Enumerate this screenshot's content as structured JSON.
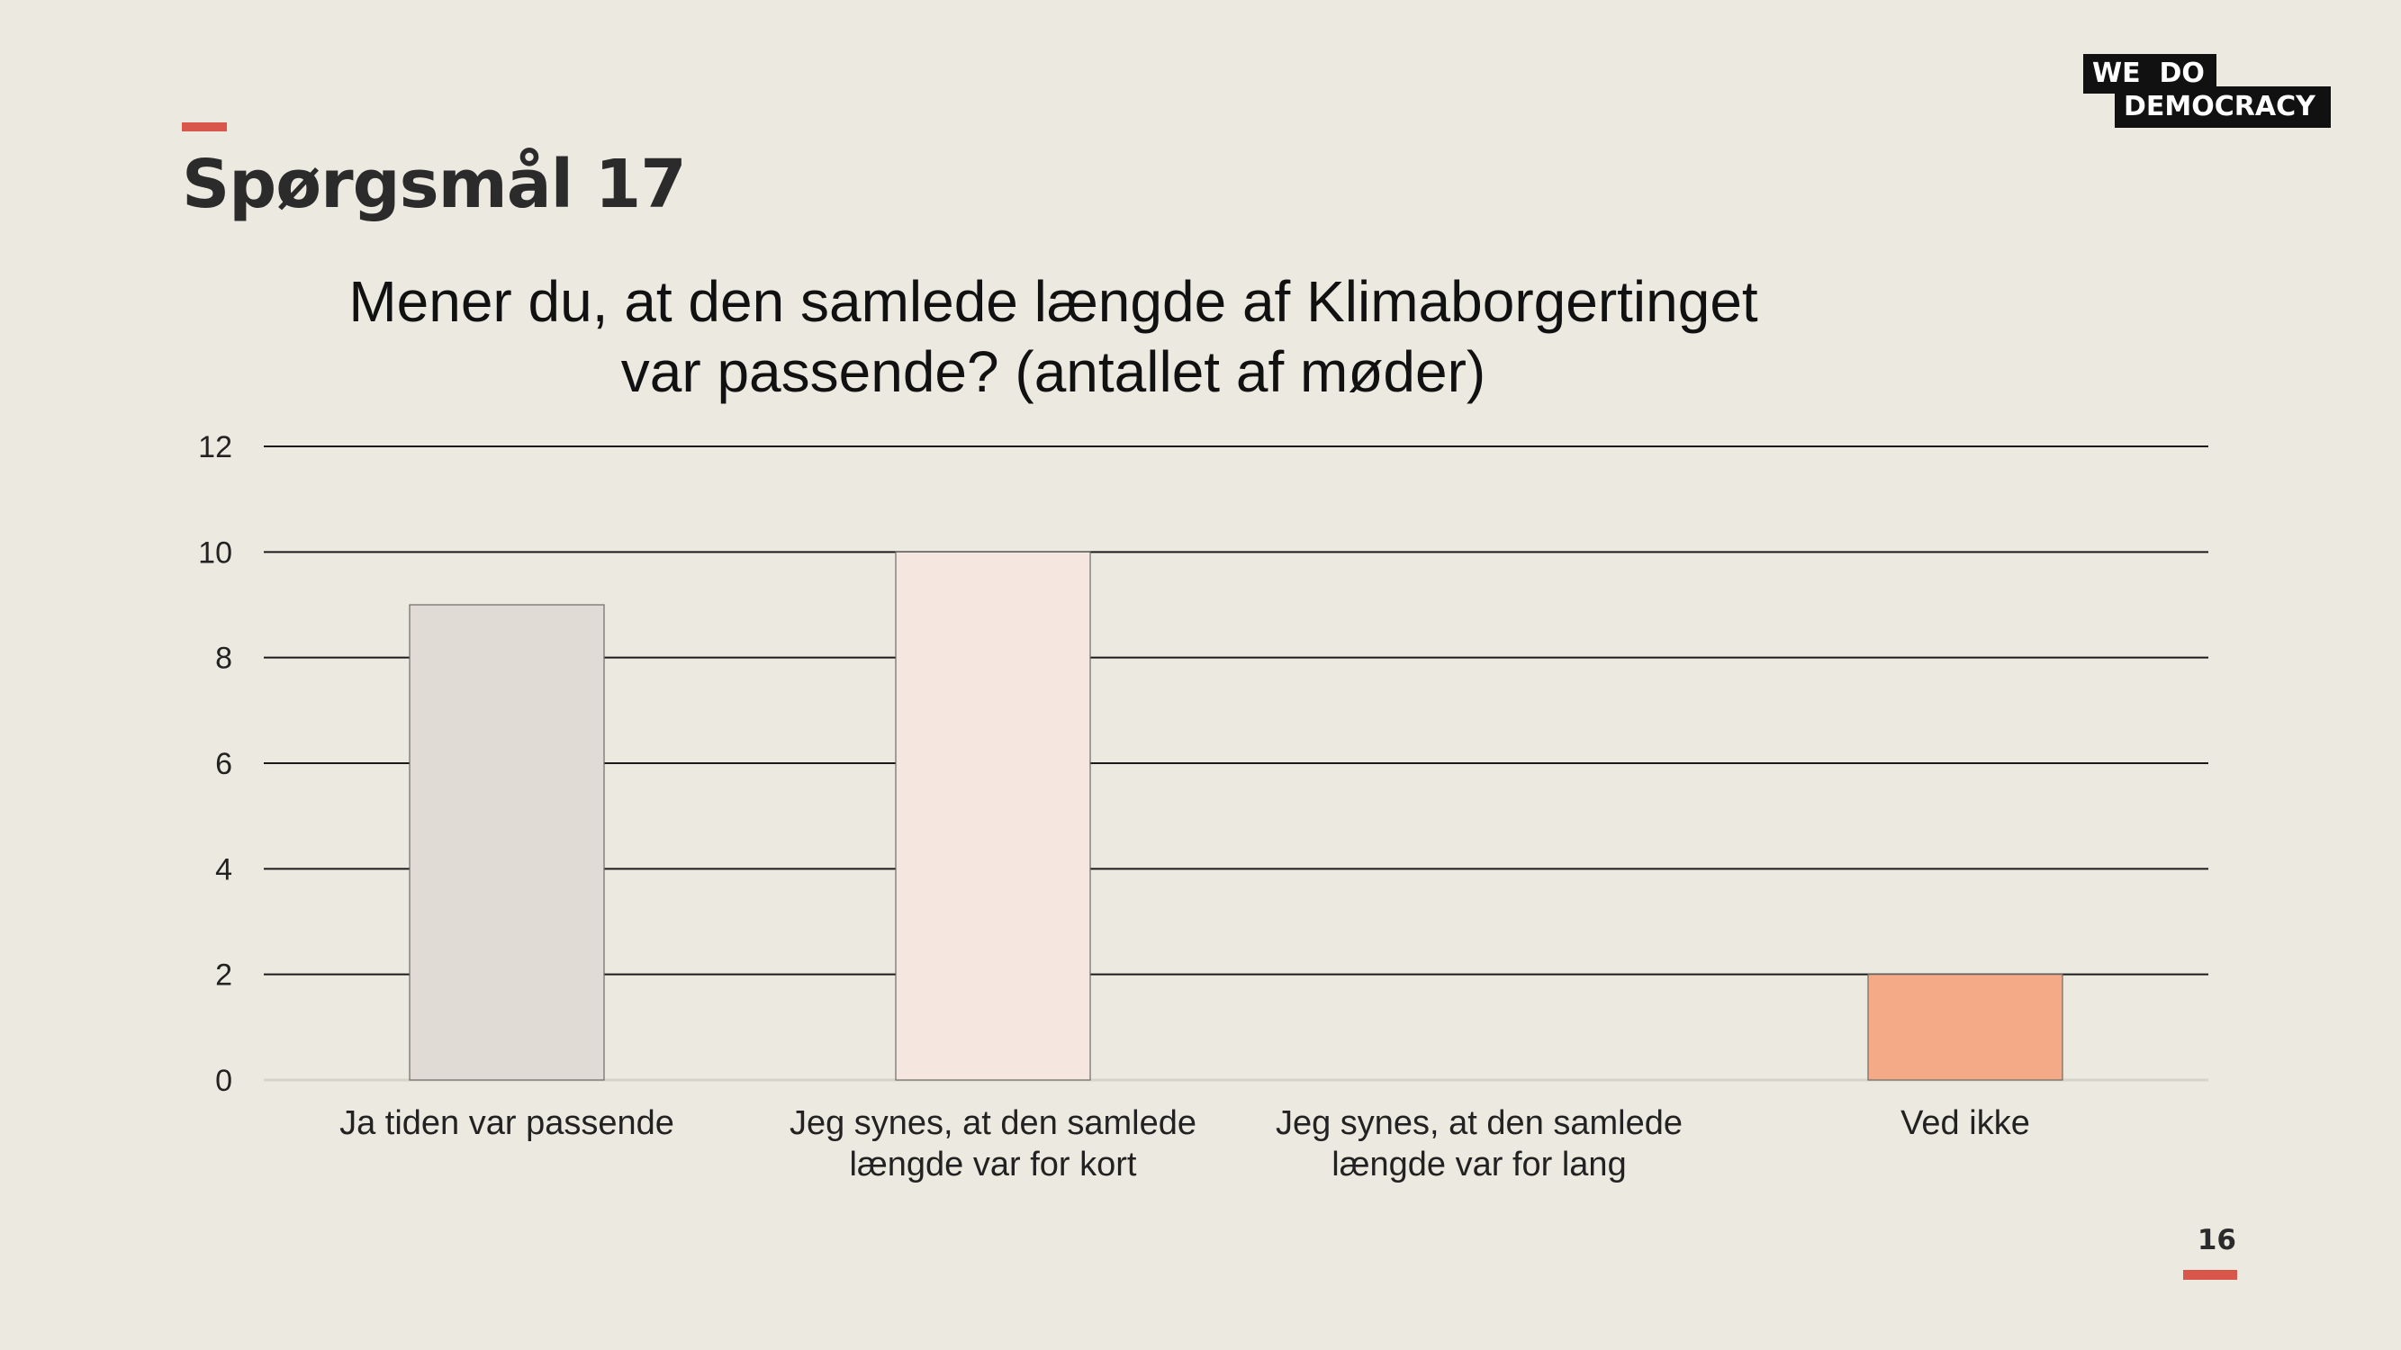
{
  "slide": {
    "title": "Spørgsmål 17",
    "page_number": "16",
    "accent_color": "#D8564A"
  },
  "logo": {
    "line1": "WE  DO",
    "line2": "DEMOCRACY"
  },
  "chart_data": {
    "type": "bar",
    "title": "Mener du, at den samlede længde af Klimaborgertinget\nvar passende? (antallet af møder)",
    "categories": [
      "Ja tiden var passende",
      "Jeg synes, at den samlede\nlængde var for kort",
      "Jeg synes, at den samlede\nlængde var for lang",
      "Ved ikke"
    ],
    "values": [
      9,
      10,
      0,
      2
    ],
    "bar_colors": [
      "#E1DBD5",
      "#F5E7E0",
      "#F2C3AE",
      "#F5AA87"
    ],
    "ylim": [
      0,
      12
    ],
    "yticks": [
      "0",
      "2",
      "4",
      "6",
      "8",
      "10",
      "12"
    ],
    "grid": true,
    "xlabel": "",
    "ylabel": ""
  }
}
